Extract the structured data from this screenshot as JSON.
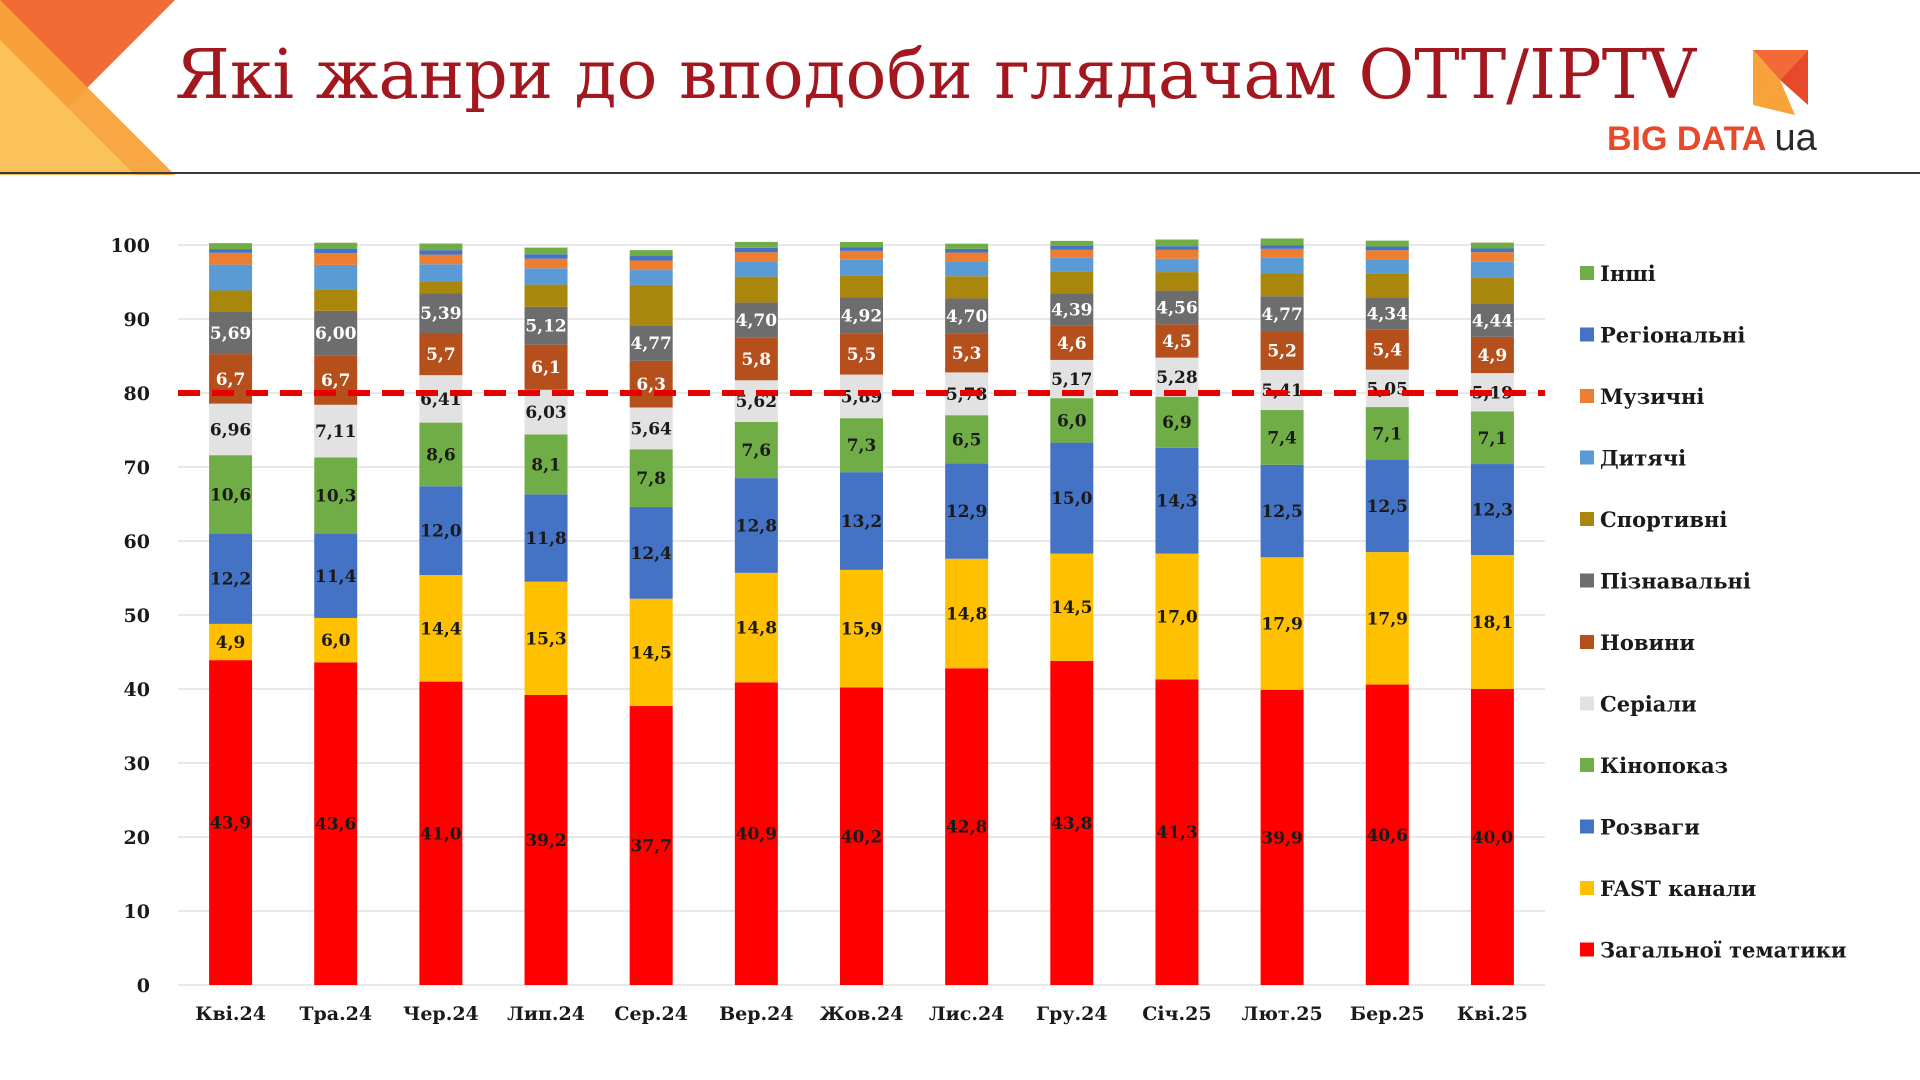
{
  "title": "Які жанри до вподоби глядачам OTT/IPTV",
  "logo": {
    "text": "BIG DATA",
    "suffix": "ua"
  },
  "colors": {
    "title": "#a3171f",
    "accent": "#f7a33a",
    "logo": "#e8492a"
  },
  "chart_data": {
    "type": "bar",
    "stacked": true,
    "title": "",
    "xlabel": "",
    "ylabel": "",
    "ylim": [
      0,
      100
    ],
    "yticks": [
      0,
      10,
      20,
      30,
      40,
      50,
      60,
      70,
      80,
      90,
      100
    ],
    "grid": true,
    "legend_position": "right",
    "reference_line": {
      "value": 80,
      "style": "dashed",
      "color": "#e60000"
    },
    "categories": [
      "Кві.24",
      "Тра.24",
      "Чер.24",
      "Лип.24",
      "Сер.24",
      "Вер.24",
      "Жов.24",
      "Лис.24",
      "Гру.24",
      "Січ.25",
      "Лют.25",
      "Бер.25",
      "Кві.25"
    ],
    "series": [
      {
        "name": "Загальної тематики",
        "color": "#ff0000",
        "label_color": "#1a1a1a",
        "values": [
          43.9,
          43.6,
          41.0,
          39.2,
          37.7,
          40.9,
          40.2,
          42.8,
          43.8,
          41.3,
          39.9,
          40.6,
          40.0
        ],
        "labels": [
          "43,9",
          "43,6",
          "41,0",
          "39,2",
          "37,7",
          "40,9",
          "40,2",
          "42,8",
          "43,8",
          "41,3",
          "39,9",
          "40,6",
          "40,0"
        ]
      },
      {
        "name": "FAST канали",
        "color": "#ffc000",
        "label_color": "#1a1a1a",
        "values": [
          4.9,
          6.0,
          14.4,
          15.3,
          14.5,
          14.8,
          15.9,
          14.8,
          14.5,
          17.0,
          17.9,
          17.9,
          18.1
        ],
        "labels": [
          "4,9",
          "6,0",
          "14,4",
          "15,3",
          "14,5",
          "14,8",
          "15,9",
          "14,8",
          "14,5",
          "17,0",
          "17,9",
          "17,9",
          "18,1"
        ]
      },
      {
        "name": "Розваги",
        "color": "#4472c4",
        "label_color": "#1a1a1a",
        "values": [
          12.2,
          11.4,
          12.0,
          11.8,
          12.4,
          12.8,
          13.2,
          12.9,
          15.0,
          14.3,
          12.5,
          12.5,
          12.3
        ],
        "labels": [
          "12,2",
          "11,4",
          "12,0",
          "11,8",
          "12,4",
          "12,8",
          "13,2",
          "12,9",
          "15,0",
          "14,3",
          "12,5",
          "12,5",
          "12,3"
        ]
      },
      {
        "name": "Кінопоказ",
        "color": "#70ad47",
        "label_color": "#1a1a1a",
        "values": [
          10.6,
          10.3,
          8.6,
          8.1,
          7.8,
          7.6,
          7.3,
          6.5,
          6.0,
          6.9,
          7.4,
          7.1,
          7.1
        ],
        "labels": [
          "10,6",
          "10,3",
          "8,6",
          "8,1",
          "7,8",
          "7,6",
          "7,3",
          "6,5",
          "6,0",
          "6,9",
          "7,4",
          "7,1",
          "7,1"
        ]
      },
      {
        "name": "Серіали",
        "color": "#e2e2e2",
        "label_color": "#1a1a1a",
        "values": [
          6.96,
          7.11,
          6.41,
          6.03,
          5.64,
          5.62,
          5.89,
          5.78,
          5.17,
          5.28,
          5.41,
          5.05,
          5.19
        ],
        "labels": [
          "6,96",
          "7,11",
          "6,41",
          "6,03",
          "5,64",
          "5,62",
          "5,89",
          "5,78",
          "5,17",
          "5,28",
          "5,41",
          "5,05",
          "5,19"
        ]
      },
      {
        "name": "Новини",
        "color": "#b5501c",
        "label_color": "#ffffff",
        "values": [
          6.7,
          6.7,
          5.7,
          6.1,
          6.3,
          5.8,
          5.5,
          5.3,
          4.6,
          4.5,
          5.2,
          5.4,
          4.9
        ],
        "labels": [
          "6,7",
          "6,7",
          "5,7",
          "6,1",
          "6,3",
          "5,8",
          "5,5",
          "5,3",
          "4,6",
          "4,5",
          "5,2",
          "5,4",
          "4,9"
        ]
      },
      {
        "name": "Пізнавальні",
        "color": "#6d6d6d",
        "label_color": "#ffffff",
        "values": [
          5.69,
          6.0,
          5.39,
          5.12,
          4.77,
          4.7,
          4.92,
          4.7,
          4.39,
          4.56,
          4.77,
          4.34,
          4.44
        ],
        "labels": [
          "5,69",
          "6,00",
          "5,39",
          "5,12",
          "4,77",
          "4,70",
          "4,92",
          "4,70",
          "4,39",
          "4,56",
          "4,77",
          "4,34",
          "4,44"
        ]
      },
      {
        "name": "Спортивні",
        "color": "#a9860c",
        "label_color": "#1a1a1a",
        "values": [
          2.9,
          2.9,
          1.5,
          3.0,
          5.5,
          3.5,
          3.0,
          3.0,
          2.9,
          2.5,
          3.0,
          3.2,
          3.6
        ],
        "labels": []
      },
      {
        "name": "Дитячі",
        "color": "#5b9bd5",
        "label_color": "#1a1a1a",
        "values": [
          3.5,
          3.3,
          2.4,
          2.2,
          2.0,
          2.1,
          2.1,
          2.0,
          1.9,
          1.8,
          2.2,
          2.0,
          2.1
        ],
        "labels": []
      },
      {
        "name": "Музичні",
        "color": "#ed7d31",
        "label_color": "#1a1a1a",
        "values": [
          1.6,
          1.6,
          1.3,
          1.3,
          1.3,
          1.2,
          1.2,
          1.2,
          1.1,
          1.2,
          1.2,
          1.2,
          1.3
        ],
        "labels": []
      },
      {
        "name": "Регіональні",
        "color": "#4472c4",
        "label_color": "#1a1a1a",
        "values": [
          0.5,
          0.6,
          0.6,
          0.6,
          0.6,
          0.6,
          0.5,
          0.5,
          0.5,
          0.5,
          0.5,
          0.5,
          0.5
        ],
        "labels": []
      },
      {
        "name": "Інші",
        "color": "#70ad47",
        "label_color": "#1a1a1a",
        "values": [
          0.8,
          0.8,
          0.9,
          0.9,
          0.8,
          0.8,
          0.7,
          0.7,
          0.7,
          0.9,
          0.9,
          0.8,
          0.8
        ],
        "labels": []
      }
    ]
  }
}
